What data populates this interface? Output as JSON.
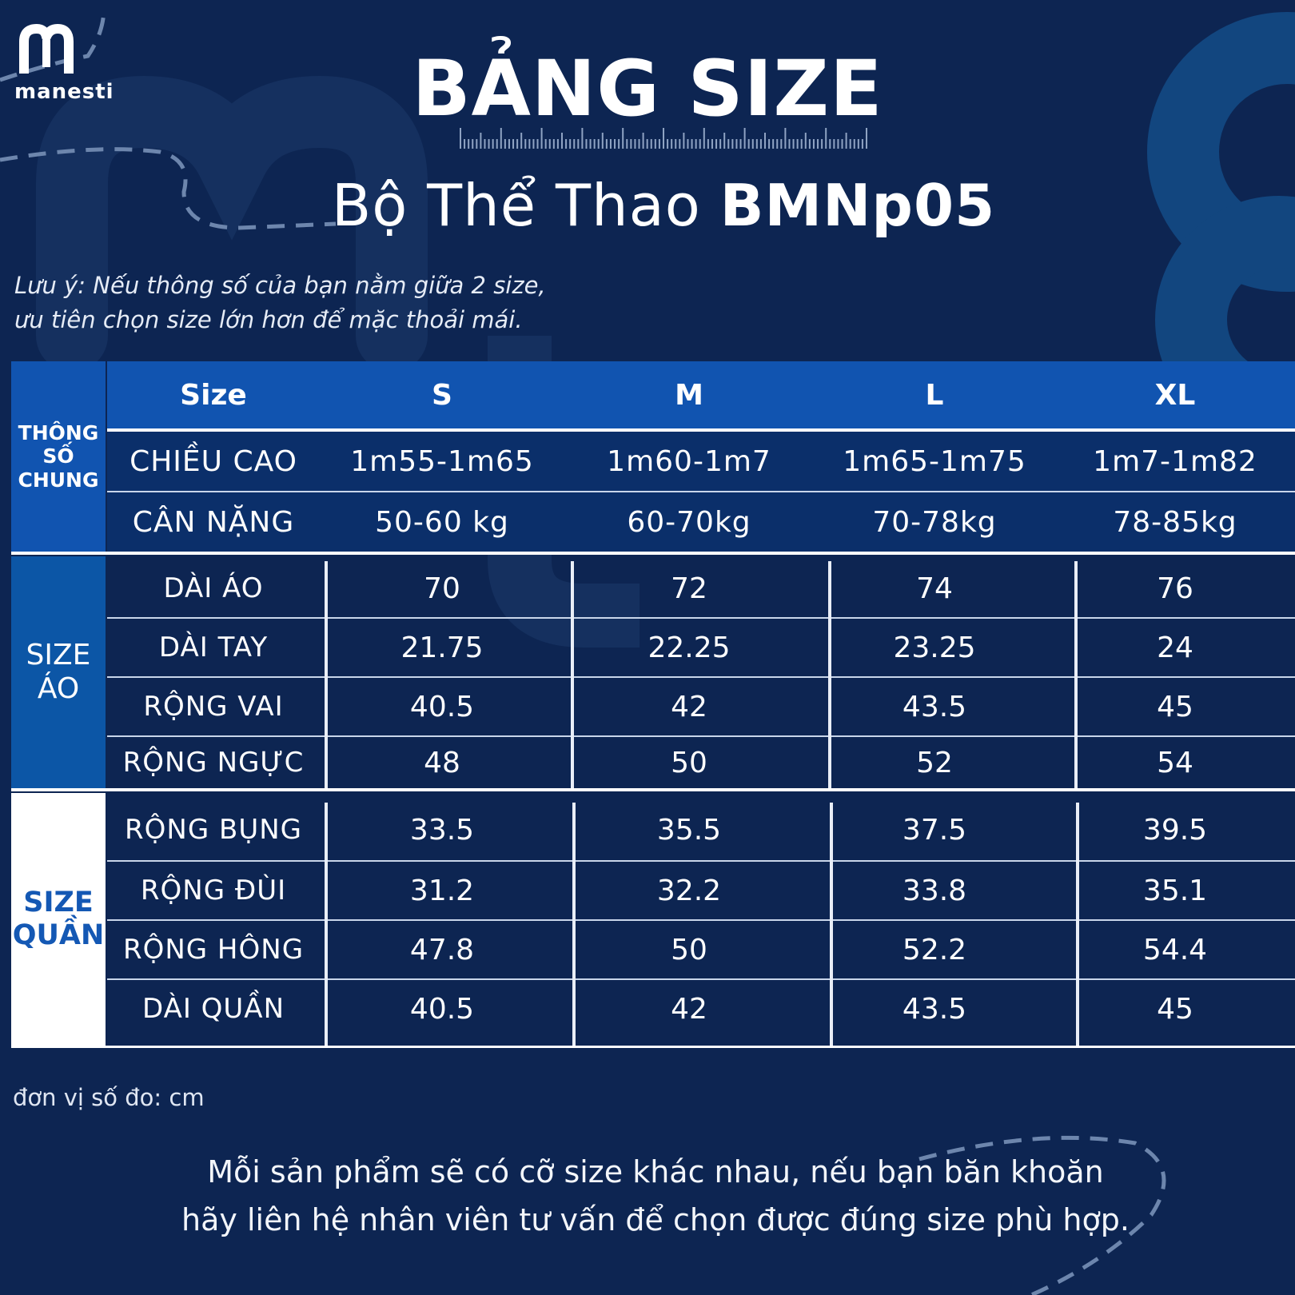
{
  "brand": {
    "name": "manesti",
    "logo_letter": "m"
  },
  "title": "BẢNG SIZE",
  "subtitle": {
    "prefix": "Bộ Thể Thao ",
    "product_code": "BMNp05"
  },
  "note": {
    "line1": "Lưu ý: Nếu thông số của bạn nằm giữa 2 size,",
    "line2": "ưu tiên chọn size lớn hơn để mặc thoải mái."
  },
  "colors": {
    "background": "#0d2552",
    "header_band": "#1154b0",
    "general_band": "#0b2f6a",
    "ao_label_bg": "#0c56a6",
    "quan_label_bg": "#ffffff",
    "quan_label_text": "#1458b4"
  },
  "table": {
    "header": {
      "size_label": "Size",
      "sizes": [
        "S",
        "M",
        "L",
        "XL"
      ]
    },
    "general": {
      "label": [
        "THÔNG",
        "SỐ",
        "CHUNG"
      ],
      "rows": [
        {
          "label": "CHIỀU CAO",
          "values": [
            "1m55-1m65",
            "1m60-1m7",
            "1m65-1m75",
            "1m7-1m82"
          ]
        },
        {
          "label": "CÂN NẶNG",
          "values": [
            "50-60 kg",
            "60-70kg",
            "70-78kg",
            "78-85kg"
          ]
        }
      ]
    },
    "ao": {
      "label": [
        "SIZE",
        "ÁO"
      ],
      "rows": [
        {
          "label": "DÀI ÁO",
          "values": [
            "70",
            "72",
            "74",
            "76"
          ]
        },
        {
          "label": "DÀI TAY",
          "values": [
            "21.75",
            "22.25",
            "23.25",
            "24"
          ]
        },
        {
          "label": "RỘNG VAI",
          "values": [
            "40.5",
            "42",
            "43.5",
            "45"
          ]
        },
        {
          "label": "RỘNG NGỰC",
          "values": [
            "48",
            "50",
            "52",
            "54"
          ]
        }
      ]
    },
    "quan": {
      "label": [
        "SIZE",
        "QUẦN"
      ],
      "rows": [
        {
          "label": "RỘNG BỤNG",
          "values": [
            "33.5",
            "35.5",
            "37.5",
            "39.5"
          ]
        },
        {
          "label": "RỘNG ĐÙI",
          "values": [
            "31.2",
            "32.2",
            "33.8",
            "35.1"
          ]
        },
        {
          "label": "RỘNG HÔNG",
          "values": [
            "47.8",
            "50",
            "52.2",
            "54.4"
          ]
        },
        {
          "label": "DÀI QUẦN",
          "values": [
            "40.5",
            "42",
            "43.5",
            "45"
          ]
        }
      ]
    }
  },
  "unit_note": "đơn vị số đo: cm",
  "footer": {
    "line1": "Mỗi sản phẩm sẽ có cỡ size khác nhau, nếu bạn băn khoăn",
    "line2": "hãy liên hệ nhân viên tư vấn để chọn được đúng size phù hợp."
  }
}
